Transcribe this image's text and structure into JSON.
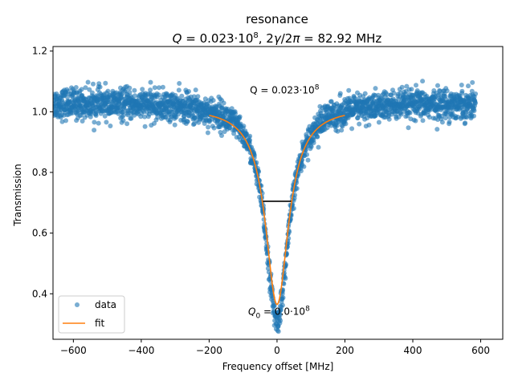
{
  "chart_data": {
    "type": "scatter",
    "title": "resonance",
    "subtitle": {
      "q_label": "Q",
      "q_value": " = 0.023·10",
      "q_exp": "8",
      "sep": ", 2",
      "gamma": "γ",
      "slash": "/2",
      "pi": "π",
      "tail": " = 82.92 MHz"
    },
    "xlabel": "Frequency offset [MHz]",
    "ylabel": "Transmission",
    "xlim": [
      -660,
      665
    ],
    "ylim": [
      0.25,
      1.215
    ],
    "xticks": [
      -600,
      -400,
      -200,
      0,
      200,
      400,
      600
    ],
    "yticks": [
      0.4,
      0.6,
      0.8,
      1.0,
      1.2
    ],
    "xtick_labels": [
      "−600",
      "−400",
      "−200",
      "0",
      "200",
      "400",
      "600"
    ],
    "ytick_labels": [
      "0.4",
      "0.6",
      "0.8",
      "1.0",
      "1.2"
    ],
    "annotations": {
      "q_loaded": {
        "prefix": "Q = 0.023·10",
        "exp": "8",
        "x": -80,
        "y": 1.06
      },
      "q_intrinsic": {
        "prefix": " = 0.0·10",
        "exp": "8",
        "x": -85,
        "y": 0.33
      }
    },
    "linewidth_marker": {
      "x": [
        -41.46,
        41.46
      ],
      "y": 0.705
    },
    "series": [
      {
        "name": "data",
        "kind": "scatter",
        "color": "#1f77b4",
        "x_range": [
          -660,
          585
        ],
        "baseline": 1.03,
        "dip_depth": 0.72,
        "half_width_mhz": 41.46,
        "noise": 0.045
      },
      {
        "name": "fit",
        "kind": "line",
        "color": "#ff7f0e",
        "x_range": [
          -200,
          200
        ],
        "baseline": 1.015,
        "dip_depth": 0.65,
        "half_width_mhz": 41.46
      }
    ],
    "legend": {
      "position": "lower-left",
      "entries": [
        "data",
        "fit"
      ]
    },
    "grid": false
  }
}
